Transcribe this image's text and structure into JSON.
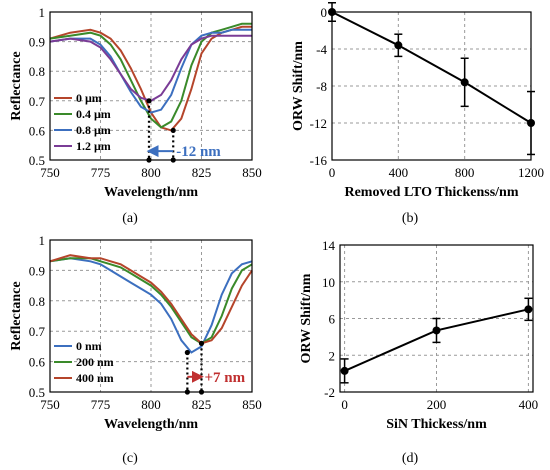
{
  "chart_data": [
    {
      "id": "a",
      "type": "line",
      "panel_label": "(a)",
      "xlabel": "Wavelength/nm",
      "ylabel": "Reflectance",
      "xlim": [
        750,
        850
      ],
      "ylim": [
        0.5,
        1.0
      ],
      "xticks": [
        750,
        775,
        800,
        825,
        850
      ],
      "yticks": [
        0.5,
        0.6,
        0.7,
        0.8,
        0.9,
        1.0
      ],
      "xtick_labels": [
        "750",
        "775",
        "800",
        "825",
        "850"
      ],
      "ytick_labels": [
        "0.5",
        "0.6",
        "0.7",
        "0.8",
        "0.9",
        "1"
      ],
      "grid": true,
      "legend_position": "lower-left",
      "x": [
        750,
        760,
        770,
        775,
        780,
        785,
        790,
        795,
        800,
        805,
        810,
        815,
        820,
        825,
        830,
        835,
        840,
        845,
        850
      ],
      "series": [
        {
          "name": "0 μm",
          "color": "#b5452b",
          "values": [
            0.91,
            0.93,
            0.94,
            0.93,
            0.91,
            0.87,
            0.81,
            0.74,
            0.66,
            0.61,
            0.6,
            0.64,
            0.74,
            0.86,
            0.91,
            0.93,
            0.94,
            0.95,
            0.95
          ]
        },
        {
          "name": "0.4 μm",
          "color": "#3a8a2a",
          "values": [
            0.91,
            0.92,
            0.93,
            0.92,
            0.89,
            0.84,
            0.77,
            0.7,
            0.64,
            0.61,
            0.63,
            0.7,
            0.82,
            0.9,
            0.93,
            0.94,
            0.95,
            0.96,
            0.96
          ]
        },
        {
          "name": "0.8 μm",
          "color": "#3c6fbf",
          "values": [
            0.9,
            0.91,
            0.91,
            0.89,
            0.85,
            0.79,
            0.73,
            0.68,
            0.66,
            0.67,
            0.72,
            0.81,
            0.89,
            0.92,
            0.93,
            0.93,
            0.94,
            0.94,
            0.94
          ]
        },
        {
          "name": "1.2 μm",
          "color": "#7a3c96",
          "values": [
            0.9,
            0.91,
            0.9,
            0.88,
            0.84,
            0.79,
            0.74,
            0.71,
            0.7,
            0.72,
            0.77,
            0.84,
            0.89,
            0.91,
            0.92,
            0.92,
            0.92,
            0.92,
            0.92
          ]
        }
      ],
      "annotation": {
        "text": "-12 nm",
        "color": "#3c6fbf",
        "from_x": 811,
        "to_x": 799,
        "y": 0.53
      },
      "markers": [
        {
          "x": 799,
          "y": 0.7
        },
        {
          "x": 811,
          "y": 0.6
        }
      ]
    },
    {
      "id": "b",
      "type": "line",
      "panel_label": "(b)",
      "xlabel": "Removed LTO Thickenss/nm",
      "ylabel": "ORW Shift/nm",
      "xlim": [
        0,
        1200
      ],
      "ylim": [
        -16,
        0
      ],
      "xticks": [
        0,
        400,
        800,
        1200
      ],
      "yticks": [
        -16,
        -12,
        -8,
        -4,
        0
      ],
      "xtick_labels": [
        "0",
        "400",
        "800",
        "1200"
      ],
      "ytick_labels": [
        "-16",
        "-12",
        "-8",
        "-4",
        "0"
      ],
      "grid": true,
      "x": [
        0,
        400,
        800,
        1200
      ],
      "series": [
        {
          "name": "",
          "color": "#000000",
          "values": [
            0,
            -3.6,
            -7.6,
            -12
          ],
          "errors": [
            1.0,
            1.2,
            2.6,
            3.4
          ]
        }
      ]
    },
    {
      "id": "c",
      "type": "line",
      "panel_label": "(c)",
      "xlabel": "Wavelength/nm",
      "ylabel": "Reflectance",
      "xlim": [
        750,
        850
      ],
      "ylim": [
        0.5,
        1.0
      ],
      "xticks": [
        750,
        775,
        800,
        825,
        850
      ],
      "yticks": [
        0.5,
        0.6,
        0.7,
        0.8,
        0.9,
        1.0
      ],
      "xtick_labels": [
        "750",
        "775",
        "800",
        "825",
        "850"
      ],
      "ytick_labels": [
        "0.5",
        "0.6",
        "0.7",
        "0.8",
        "0.9",
        "1"
      ],
      "grid": true,
      "legend_position": "lower-left",
      "x": [
        750,
        760,
        770,
        775,
        780,
        785,
        790,
        795,
        800,
        805,
        810,
        815,
        820,
        825,
        830,
        835,
        840,
        845,
        850
      ],
      "series": [
        {
          "name": "0 nm",
          "color": "#3c6fbf",
          "values": [
            0.93,
            0.94,
            0.93,
            0.92,
            0.9,
            0.88,
            0.86,
            0.84,
            0.82,
            0.79,
            0.74,
            0.67,
            0.63,
            0.65,
            0.72,
            0.82,
            0.89,
            0.92,
            0.93
          ]
        },
        {
          "name": "200 nm",
          "color": "#3a8a2a",
          "values": [
            0.93,
            0.94,
            0.94,
            0.93,
            0.92,
            0.91,
            0.89,
            0.87,
            0.85,
            0.82,
            0.78,
            0.73,
            0.68,
            0.66,
            0.68,
            0.75,
            0.84,
            0.9,
            0.92
          ]
        },
        {
          "name": "400 nm",
          "color": "#b5452b",
          "values": [
            0.93,
            0.95,
            0.94,
            0.94,
            0.93,
            0.92,
            0.9,
            0.88,
            0.86,
            0.83,
            0.79,
            0.74,
            0.69,
            0.66,
            0.67,
            0.71,
            0.78,
            0.85,
            0.9
          ]
        }
      ],
      "annotation": {
        "text": "+7 nm",
        "color": "#c03030",
        "from_x": 818,
        "to_x": 825,
        "y": 0.55
      },
      "markers": [
        {
          "x": 818,
          "y": 0.63
        },
        {
          "x": 825,
          "y": 0.66
        }
      ]
    },
    {
      "id": "d",
      "type": "line",
      "panel_label": "(d)",
      "xlabel": "SiN Thickess/nm",
      "ylabel": "ORW Shift/nm",
      "xlim": [
        -10,
        410
      ],
      "ylim": [
        -2,
        14
      ],
      "xticks": [
        0,
        200,
        400
      ],
      "yticks": [
        -2,
        2,
        6,
        10,
        14
      ],
      "xtick_labels": [
        "0",
        "200",
        "400"
      ],
      "ytick_labels": [
        "-2",
        "2",
        "6",
        "10",
        "14"
      ],
      "grid": true,
      "x": [
        0,
        200,
        400
      ],
      "series": [
        {
          "name": "",
          "color": "#000000",
          "values": [
            0.3,
            4.7,
            7.0
          ],
          "errors": [
            1.3,
            1.3,
            1.2
          ]
        }
      ]
    }
  ]
}
